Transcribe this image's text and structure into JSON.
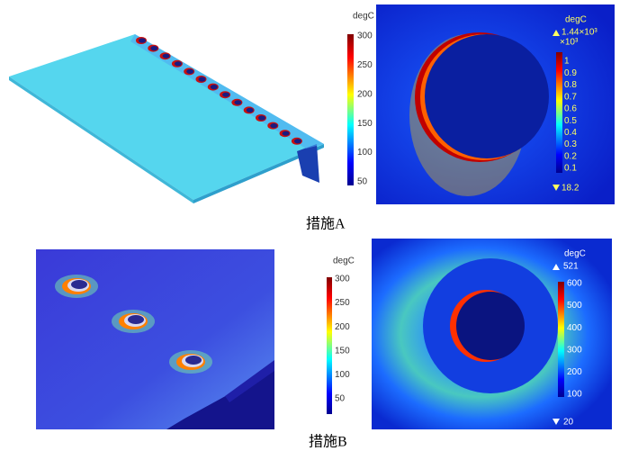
{
  "panels": [
    {
      "unit": "degC",
      "ticks": [
        "300",
        "250",
        "200",
        "150",
        "100",
        "50"
      ]
    },
    {
      "unit": "degC",
      "max": "1.44×10³",
      "scale": "×10³",
      "ticks": [
        "1",
        "0.9",
        "0.8",
        "0.7",
        "0.6",
        "0.5",
        "0.4",
        "0.3",
        "0.2",
        "0.1"
      ],
      "min": "18.2"
    },
    {
      "unit": "degC",
      "ticks": [
        "300",
        "250",
        "200",
        "150",
        "100",
        "50"
      ]
    },
    {
      "unit": "degC",
      "max": "521",
      "ticks": [
        "600",
        "500",
        "400",
        "300",
        "200",
        "100"
      ],
      "min": "20"
    }
  ],
  "captions": [
    "措施A",
    "措施B"
  ]
}
